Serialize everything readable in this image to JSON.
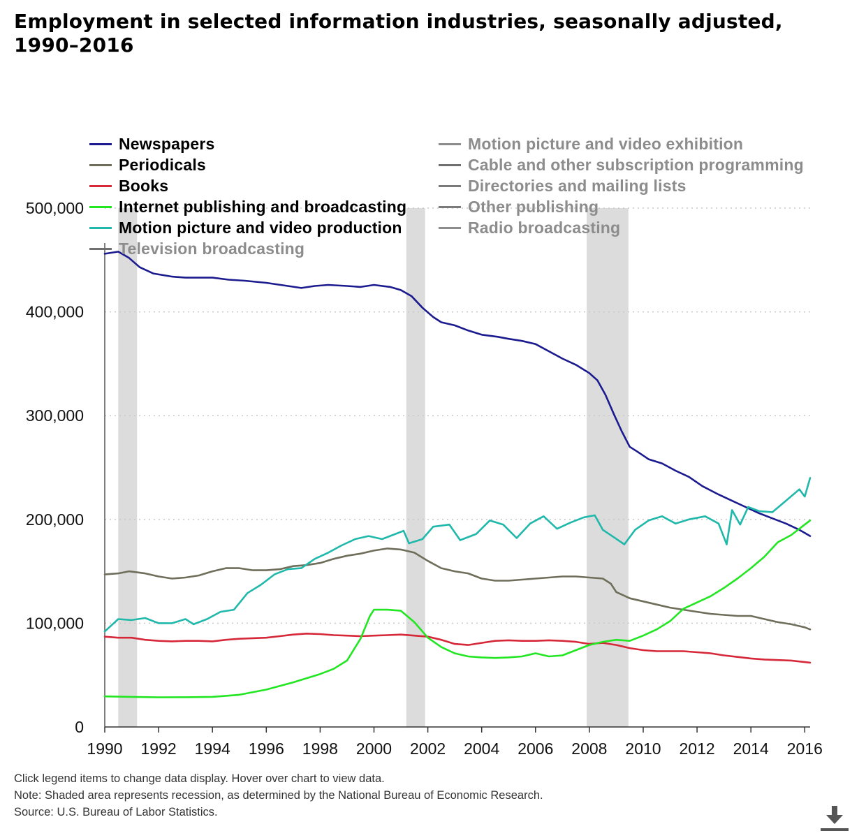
{
  "title": "Employment in selected information industries, seasonally adjusted, 1990–2016",
  "legend": {
    "left": [
      {
        "label": "Newspapers",
        "color": "#1b1b8f",
        "active": true
      },
      {
        "label": "Periodicals",
        "color": "#6e6e5a",
        "active": true
      },
      {
        "label": "Books",
        "color": "#d62839",
        "active": true
      },
      {
        "label": "Internet publishing and broadcasting",
        "color": "#22e622",
        "active": true
      },
      {
        "label": "Motion picture and video production",
        "color": "#20b8aa",
        "active": true
      },
      {
        "label": "Television broadcasting",
        "color": "#707070",
        "active": false
      }
    ],
    "right": [
      {
        "label": "Motion picture and video exhibition",
        "color": "#8c8c8c",
        "active": false
      },
      {
        "label": "Cable and other subscription programming",
        "color": "#707070",
        "active": false
      },
      {
        "label": "Directories and mailing lists",
        "color": "#7a7a7a",
        "active": false
      },
      {
        "label": "Other publishing",
        "color": "#7a7a7a",
        "active": false
      },
      {
        "label": "Radio broadcasting",
        "color": "#8c8c8c",
        "active": false
      }
    ]
  },
  "chart_data": {
    "type": "line",
    "xlim": [
      1990,
      2016.2
    ],
    "ylim": [
      0,
      500000
    ],
    "x_ticks": [
      1990,
      1992,
      1994,
      1996,
      1998,
      2000,
      2002,
      2004,
      2006,
      2008,
      2010,
      2012,
      2014,
      2016
    ],
    "y_ticks": [
      0,
      100000,
      200000,
      300000,
      400000,
      500000
    ],
    "y_tick_labels": [
      "0",
      "100,000",
      "200,000",
      "300,000",
      "400,000",
      "500,000"
    ],
    "grid": "horizontal dotted",
    "legend_position": "top",
    "recessions": [
      [
        1990.5,
        1991.2
      ],
      [
        2001.2,
        2001.9
      ],
      [
        2007.9,
        2009.45
      ]
    ],
    "series": [
      {
        "name": "Newspapers",
        "color": "#1b1b8f",
        "points": [
          [
            1990,
            456000
          ],
          [
            1990.5,
            458000
          ],
          [
            1990.9,
            452000
          ],
          [
            1991.3,
            443000
          ],
          [
            1991.8,
            437000
          ],
          [
            1992.5,
            434000
          ],
          [
            1993,
            433000
          ],
          [
            1994,
            433000
          ],
          [
            1994.6,
            431000
          ],
          [
            1995.2,
            430000
          ],
          [
            1996,
            428000
          ],
          [
            1996.8,
            425000
          ],
          [
            1997.3,
            423000
          ],
          [
            1997.8,
            425000
          ],
          [
            1998.3,
            426000
          ],
          [
            1999,
            425000
          ],
          [
            1999.5,
            424000
          ],
          [
            2000,
            426000
          ],
          [
            2000.6,
            424000
          ],
          [
            2001,
            421000
          ],
          [
            2001.4,
            415000
          ],
          [
            2001.8,
            404000
          ],
          [
            2002.2,
            395000
          ],
          [
            2002.5,
            390000
          ],
          [
            2003,
            387000
          ],
          [
            2003.5,
            382000
          ],
          [
            2004,
            378000
          ],
          [
            2004.6,
            376000
          ],
          [
            2005,
            374000
          ],
          [
            2005.5,
            372000
          ],
          [
            2006,
            369000
          ],
          [
            2006.5,
            362000
          ],
          [
            2007,
            355000
          ],
          [
            2007.5,
            349000
          ],
          [
            2008,
            341000
          ],
          [
            2008.3,
            334000
          ],
          [
            2008.6,
            320000
          ],
          [
            2008.9,
            302000
          ],
          [
            2009.2,
            285000
          ],
          [
            2009.5,
            270000
          ],
          [
            2009.8,
            265000
          ],
          [
            2010.2,
            258000
          ],
          [
            2010.7,
            254000
          ],
          [
            2011.2,
            247000
          ],
          [
            2011.7,
            241000
          ],
          [
            2012.2,
            232000
          ],
          [
            2012.8,
            224000
          ],
          [
            2013.3,
            218000
          ],
          [
            2013.8,
            212000
          ],
          [
            2014.3,
            206000
          ],
          [
            2014.8,
            201000
          ],
          [
            2015.3,
            196000
          ],
          [
            2015.8,
            190000
          ],
          [
            2016.2,
            184000
          ]
        ]
      },
      {
        "name": "Periodicals",
        "color": "#6e6e5a",
        "points": [
          [
            1990,
            147000
          ],
          [
            1990.5,
            148000
          ],
          [
            1990.9,
            150000
          ],
          [
            1991.5,
            148000
          ],
          [
            1992,
            145000
          ],
          [
            1992.5,
            143000
          ],
          [
            1993,
            144000
          ],
          [
            1993.5,
            146000
          ],
          [
            1994,
            150000
          ],
          [
            1994.5,
            153000
          ],
          [
            1995,
            153000
          ],
          [
            1995.5,
            151000
          ],
          [
            1996,
            151000
          ],
          [
            1996.5,
            152000
          ],
          [
            1997,
            155000
          ],
          [
            1997.5,
            156000
          ],
          [
            1998,
            158000
          ],
          [
            1998.5,
            162000
          ],
          [
            1999,
            165000
          ],
          [
            1999.5,
            167000
          ],
          [
            2000,
            170000
          ],
          [
            2000.5,
            172000
          ],
          [
            2001,
            171000
          ],
          [
            2001.5,
            168000
          ],
          [
            2002,
            160000
          ],
          [
            2002.5,
            153000
          ],
          [
            2003,
            150000
          ],
          [
            2003.5,
            148000
          ],
          [
            2004,
            143000
          ],
          [
            2004.5,
            141000
          ],
          [
            2005,
            141000
          ],
          [
            2005.5,
            142000
          ],
          [
            2006,
            143000
          ],
          [
            2006.5,
            144000
          ],
          [
            2007,
            145000
          ],
          [
            2007.5,
            145000
          ],
          [
            2008,
            144000
          ],
          [
            2008.5,
            143000
          ],
          [
            2008.8,
            138000
          ],
          [
            2009,
            130000
          ],
          [
            2009.5,
            124000
          ],
          [
            2010,
            121000
          ],
          [
            2010.5,
            118000
          ],
          [
            2011,
            115000
          ],
          [
            2011.5,
            113000
          ],
          [
            2012,
            111000
          ],
          [
            2012.5,
            109000
          ],
          [
            2013,
            108000
          ],
          [
            2013.5,
            107000
          ],
          [
            2014,
            107000
          ],
          [
            2014.5,
            104000
          ],
          [
            2015,
            101000
          ],
          [
            2015.5,
            99000
          ],
          [
            2016,
            96000
          ],
          [
            2016.2,
            94000
          ]
        ]
      },
      {
        "name": "Books",
        "color": "#d62839",
        "points": [
          [
            1990,
            87000
          ],
          [
            1990.5,
            86000
          ],
          [
            1991,
            86000
          ],
          [
            1991.5,
            84000
          ],
          [
            1992,
            83000
          ],
          [
            1992.5,
            82500
          ],
          [
            1993,
            83000
          ],
          [
            1993.5,
            83000
          ],
          [
            1994,
            82500
          ],
          [
            1994.5,
            84000
          ],
          [
            1995,
            85000
          ],
          [
            1995.5,
            85500
          ],
          [
            1996,
            86000
          ],
          [
            1996.5,
            87500
          ],
          [
            1997,
            89000
          ],
          [
            1997.5,
            90000
          ],
          [
            1998,
            89500
          ],
          [
            1998.5,
            88500
          ],
          [
            1999,
            88000
          ],
          [
            1999.5,
            87500
          ],
          [
            2000,
            88000
          ],
          [
            2000.5,
            88500
          ],
          [
            2001,
            89000
          ],
          [
            2001.5,
            88000
          ],
          [
            2002,
            87000
          ],
          [
            2002.5,
            84000
          ],
          [
            2003,
            80000
          ],
          [
            2003.5,
            79000
          ],
          [
            2004,
            81000
          ],
          [
            2004.5,
            83000
          ],
          [
            2005,
            83500
          ],
          [
            2005.5,
            83000
          ],
          [
            2006,
            83000
          ],
          [
            2006.5,
            83500
          ],
          [
            2007,
            83000
          ],
          [
            2007.5,
            82000
          ],
          [
            2008,
            80000
          ],
          [
            2008.5,
            81000
          ],
          [
            2009,
            79000
          ],
          [
            2009.5,
            76000
          ],
          [
            2010,
            74000
          ],
          [
            2010.5,
            73000
          ],
          [
            2011,
            73000
          ],
          [
            2011.5,
            73000
          ],
          [
            2012,
            72000
          ],
          [
            2012.5,
            71000
          ],
          [
            2013,
            69000
          ],
          [
            2013.5,
            67500
          ],
          [
            2014,
            66000
          ],
          [
            2014.5,
            65000
          ],
          [
            2015,
            64500
          ],
          [
            2015.5,
            64000
          ],
          [
            2016,
            62500
          ],
          [
            2016.2,
            62000
          ]
        ]
      },
      {
        "name": "Internet publishing and broadcasting",
        "color": "#22e622",
        "points": [
          [
            1990,
            29500
          ],
          [
            1991,
            29000
          ],
          [
            1992,
            28500
          ],
          [
            1993,
            28700
          ],
          [
            1994,
            29000
          ],
          [
            1995,
            31000
          ],
          [
            1996,
            36000
          ],
          [
            1997,
            43000
          ],
          [
            1998,
            51000
          ],
          [
            1998.5,
            56000
          ],
          [
            1999,
            64000
          ],
          [
            1999.5,
            85000
          ],
          [
            1999.85,
            107000
          ],
          [
            2000,
            113000
          ],
          [
            2000.5,
            113000
          ],
          [
            2001,
            112000
          ],
          [
            2001.5,
            101000
          ],
          [
            2002,
            86000
          ],
          [
            2002.5,
            77000
          ],
          [
            2003,
            71000
          ],
          [
            2003.5,
            68000
          ],
          [
            2004,
            67000
          ],
          [
            2004.5,
            66500
          ],
          [
            2005,
            67000
          ],
          [
            2005.5,
            68000
          ],
          [
            2006,
            71000
          ],
          [
            2006.5,
            68000
          ],
          [
            2007,
            69000
          ],
          [
            2007.5,
            74000
          ],
          [
            2008,
            79000
          ],
          [
            2008.5,
            82000
          ],
          [
            2009,
            84000
          ],
          [
            2009.5,
            83000
          ],
          [
            2010,
            88000
          ],
          [
            2010.5,
            94000
          ],
          [
            2011,
            102000
          ],
          [
            2011.5,
            114000
          ],
          [
            2012,
            120000
          ],
          [
            2012.5,
            126000
          ],
          [
            2013,
            134000
          ],
          [
            2013.5,
            143000
          ],
          [
            2014,
            153000
          ],
          [
            2014.5,
            164000
          ],
          [
            2015,
            178000
          ],
          [
            2015.5,
            185000
          ],
          [
            2016,
            195000
          ],
          [
            2016.2,
            199000
          ]
        ]
      },
      {
        "name": "Motion picture and video production",
        "color": "#20b8aa",
        "points": [
          [
            1990,
            92000
          ],
          [
            1990.5,
            104000
          ],
          [
            1991,
            103000
          ],
          [
            1991.5,
            105000
          ],
          [
            1992,
            100000
          ],
          [
            1992.5,
            100000
          ],
          [
            1993,
            104000
          ],
          [
            1993.3,
            99000
          ],
          [
            1993.8,
            104000
          ],
          [
            1994.3,
            111000
          ],
          [
            1994.8,
            113000
          ],
          [
            1995.3,
            129000
          ],
          [
            1995.8,
            137000
          ],
          [
            1996.3,
            147000
          ],
          [
            1996.8,
            152000
          ],
          [
            1997.3,
            153000
          ],
          [
            1997.8,
            162000
          ],
          [
            1998.3,
            168000
          ],
          [
            1998.8,
            175000
          ],
          [
            1999.3,
            181000
          ],
          [
            1999.8,
            184000
          ],
          [
            2000.3,
            181000
          ],
          [
            2000.8,
            186000
          ],
          [
            2001.1,
            189000
          ],
          [
            2001.3,
            177000
          ],
          [
            2001.8,
            181000
          ],
          [
            2002.2,
            193000
          ],
          [
            2002.8,
            195000
          ],
          [
            2003.2,
            180000
          ],
          [
            2003.8,
            186000
          ],
          [
            2004.3,
            199000
          ],
          [
            2004.8,
            195000
          ],
          [
            2005.3,
            182000
          ],
          [
            2005.8,
            196000
          ],
          [
            2006.3,
            203000
          ],
          [
            2006.8,
            191000
          ],
          [
            2007.3,
            197000
          ],
          [
            2007.8,
            202000
          ],
          [
            2008.2,
            204000
          ],
          [
            2008.5,
            190000
          ],
          [
            2008.9,
            183000
          ],
          [
            2009.3,
            176000
          ],
          [
            2009.7,
            190000
          ],
          [
            2010.2,
            199000
          ],
          [
            2010.7,
            203000
          ],
          [
            2011.2,
            196000
          ],
          [
            2011.7,
            200000
          ],
          [
            2012.3,
            203000
          ],
          [
            2012.8,
            196000
          ],
          [
            2013.1,
            176000
          ],
          [
            2013.3,
            209000
          ],
          [
            2013.6,
            195000
          ],
          [
            2013.9,
            212000
          ],
          [
            2014.3,
            208000
          ],
          [
            2014.8,
            207000
          ],
          [
            2015.3,
            218000
          ],
          [
            2015.8,
            229000
          ],
          [
            2016,
            222000
          ],
          [
            2016.2,
            240000
          ]
        ]
      }
    ]
  },
  "footnotes": [
    "Click legend items to change data display. Hover over chart to view data.",
    "Note: Shaded area represents recession, as determined by the National Bureau of Economic Research.",
    "Source: U.S. Bureau of Labor Statistics."
  ],
  "download_icon": "download-icon"
}
